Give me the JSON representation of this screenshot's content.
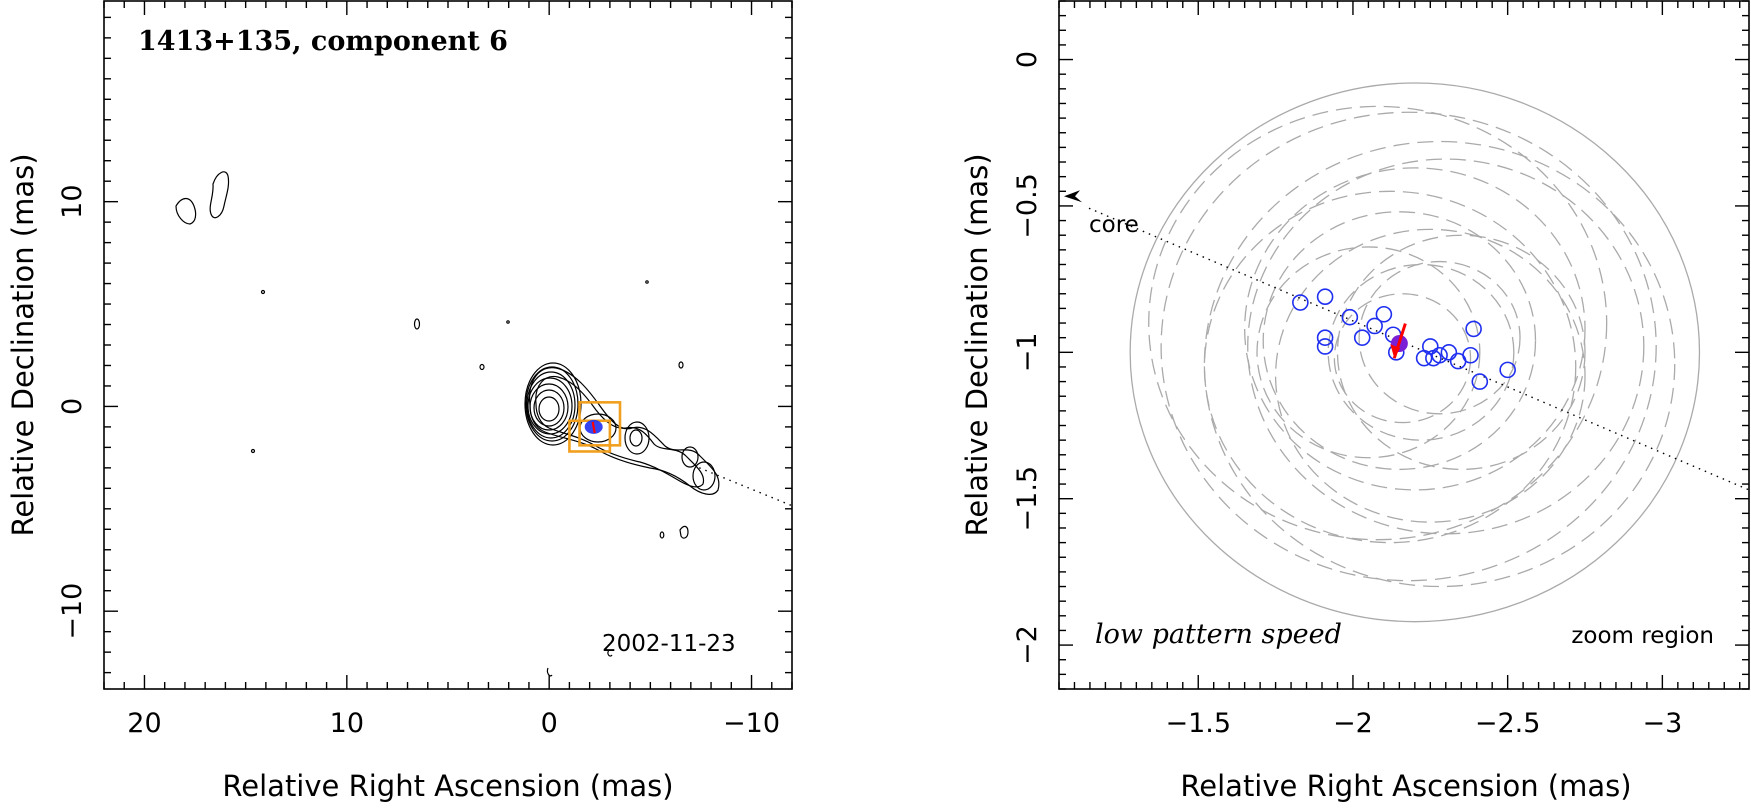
{
  "colors": {
    "contour": "#000000",
    "component_points": "#1f2ff0",
    "current_point": "#7a1fd6",
    "motion_arrow": "#ff0000",
    "zoom_box": "#f0a01e",
    "beam_circles": "#aaaaaa"
  },
  "chart_data": [
    {
      "type": "contour",
      "title": "1413+135, component 6",
      "epoch": "2002-11-23",
      "xlabel": "Relative Right Ascension (mas)",
      "ylabel": "Relative Declination (mas)",
      "xlim": [
        22,
        -12
      ],
      "ylim": [
        -13.8,
        19.8
      ],
      "xticks": [
        20,
        10,
        0,
        -10
      ],
      "xtick_labels": [
        "20",
        "10",
        "0",
        "−10"
      ],
      "yticks": [
        10,
        0,
        -10
      ],
      "ytick_labels": [
        "10",
        "0",
        "−10"
      ],
      "jet_axis_position_angle_deg": -112,
      "zoom_boxes": [
        {
          "x": [
            -1.5,
            -3.5
          ],
          "y": [
            0.2,
            -1.9
          ]
        },
        {
          "x": [
            -1.0,
            -3.0
          ],
          "y": [
            -0.7,
            -2.2
          ]
        }
      ],
      "component_point": {
        "x": -2.2,
        "y": -1.0
      }
    },
    {
      "type": "scatter",
      "annotation_left": "low pattern speed",
      "annotation_right": "zoom region",
      "core_label": "core",
      "xlabel": "Relative Right Ascension (mas)",
      "ylabel": "Relative Declination (mas)",
      "xlim": [
        -1.05,
        -3.28
      ],
      "ylim": [
        -2.15,
        0.2
      ],
      "xticks": [
        -1.5,
        -2,
        -2.5,
        -3
      ],
      "xtick_labels": [
        "−1.5",
        "−2",
        "−2.5",
        "−3"
      ],
      "yticks": [
        0,
        -0.5,
        -1,
        -1.5,
        -2
      ],
      "ytick_labels": [
        "0",
        "−0.5",
        "−1",
        "−1.5",
        "−2"
      ],
      "series": [
        {
          "values": [
            [
              -1.83,
              -0.83
            ],
            [
              -1.91,
              -0.81
            ],
            [
              -1.91,
              -0.95
            ],
            [
              -1.91,
              -0.98
            ],
            [
              -1.99,
              -0.88
            ],
            [
              -2.03,
              -0.95
            ],
            [
              -2.07,
              -0.91
            ],
            [
              -2.1,
              -0.87
            ],
            [
              -2.13,
              -0.94
            ],
            [
              -2.14,
              -1.0
            ],
            [
              -2.23,
              -1.02
            ],
            [
              -2.25,
              -0.98
            ],
            [
              -2.26,
              -1.02
            ],
            [
              -2.28,
              -1.01
            ],
            [
              -2.31,
              -1.0
            ],
            [
              -2.34,
              -1.03
            ],
            [
              -2.38,
              -1.01
            ],
            [
              -2.39,
              -0.92
            ],
            [
              -2.41,
              -1.1
            ],
            [
              -2.5,
              -1.06
            ]
          ]
        }
      ],
      "current_point": {
        "x": -2.15,
        "y": -0.97
      },
      "motion_vector": {
        "from": [
          -2.15,
          -0.97
        ],
        "to": [
          -2.14,
          -1.02
        ]
      },
      "beam_circles": [
        {
          "cx": -2.2,
          "cy": -1.0,
          "r": 0.92,
          "style": "solid"
        },
        {
          "cx": -2.18,
          "cy": -0.98,
          "r": 0.8,
          "style": "dashed"
        },
        {
          "cx": -2.28,
          "cy": -1.04,
          "r": 0.76,
          "style": "dashed"
        },
        {
          "cx": -2.08,
          "cy": -0.9,
          "r": 0.74,
          "style": "dashed"
        },
        {
          "cx": -2.3,
          "cy": -0.98,
          "r": 0.64,
          "style": "dashed"
        },
        {
          "cx": -2.12,
          "cy": -1.05,
          "r": 0.6,
          "style": "dashed"
        },
        {
          "cx": -2.2,
          "cy": -0.92,
          "r": 0.55,
          "style": "dashed"
        },
        {
          "cx": -2.25,
          "cy": -1.08,
          "r": 0.5,
          "style": "dashed"
        },
        {
          "cx": -2.15,
          "cy": -0.96,
          "r": 0.44,
          "style": "dashed"
        },
        {
          "cx": -2.35,
          "cy": -1.0,
          "r": 0.4,
          "style": "dashed"
        },
        {
          "cx": -2.05,
          "cy": -1.0,
          "r": 0.36,
          "style": "dashed"
        },
        {
          "cx": -2.22,
          "cy": -1.0,
          "r": 0.3,
          "style": "dashed"
        },
        {
          "cx": -2.28,
          "cy": -0.95,
          "r": 0.26,
          "style": "dashed"
        },
        {
          "cx": -2.16,
          "cy": -1.02,
          "r": 0.22,
          "style": "dashed"
        }
      ],
      "jet_axis": {
        "from": [
          -1.05,
          -0.46
        ],
        "to": [
          -3.28,
          -1.47
        ]
      }
    }
  ]
}
